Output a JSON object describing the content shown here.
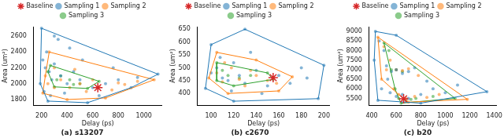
{
  "chart_data": [
    {
      "type": "scatter",
      "title": "(a) s13207",
      "x_label": "Delay (ps)",
      "y_label": "Area (um²)",
      "xlim": [
        140,
        1140
      ],
      "xticks": [
        200,
        400,
        600,
        800,
        1000
      ],
      "ylim": [
        1730,
        2720
      ],
      "yticks": [
        1800,
        2000,
        2200,
        2400,
        2600
      ],
      "grid": false,
      "legend": "top",
      "series": [
        {
          "name": "Sampling 1",
          "color": "#1f77b4",
          "marker": "circle",
          "hull": true,
          "x": [
            200,
            330,
            1110,
            900,
            560,
            250,
            190,
            210,
            230,
            240,
            260,
            280,
            300,
            350,
            400,
            450,
            500,
            600,
            700,
            800,
            220,
            270,
            380,
            650,
            520,
            420,
            300,
            760,
            950
          ],
          "values": [
            2700,
            2560,
            2120,
            1950,
            1760,
            1780,
            2000,
            2300,
            2200,
            2400,
            2150,
            2050,
            2250,
            2100,
            2000,
            2150,
            2050,
            1950,
            2000,
            2050,
            1900,
            1850,
            1880,
            1850,
            2300,
            2450,
            2600,
            2200,
            2080
          ]
        },
        {
          "name": "Sampling 2",
          "color": "#ff7f0e",
          "marker": "circle",
          "hull": true,
          "x": [
            260,
            1080,
            700,
            400,
            210,
            230,
            300,
            350,
            420,
            500,
            550,
            600,
            650,
            750,
            850,
            300,
            250,
            460,
            800,
            950
          ],
          "values": [
            2400,
            2050,
            1820,
            1800,
            1880,
            2100,
            2200,
            2050,
            1950,
            2000,
            1900,
            2050,
            1960,
            1920,
            1990,
            1950,
            2000,
            2180,
            2010,
            2030
          ]
        },
        {
          "name": "Sampling 3",
          "color": "#2ca02c",
          "marker": "circle",
          "hull": true,
          "x": [
            270,
            650,
            560,
            300,
            250,
            350,
            420,
            500,
            320,
            450
          ],
          "values": [
            2230,
            2030,
            1940,
            1960,
            2150,
            2100,
            2050,
            2000,
            2050,
            1990
          ]
        },
        {
          "name": "Baseline",
          "color": "#d62728",
          "marker": "star",
          "hull": false,
          "x": [
            640
          ],
          "values": [
            1950
          ]
        }
      ]
    },
    {
      "type": "scatter",
      "title": "(b) c2670",
      "x_label": "Delay (ps)",
      "y_label": "Area (um²)",
      "xlim": [
        88,
        205
      ],
      "xticks": [
        100,
        120,
        140,
        160,
        180,
        200
      ],
      "ylim": [
        355,
        660
      ],
      "yticks": [
        400,
        450,
        500,
        550,
        600,
        650
      ],
      "grid": false,
      "legend": "top",
      "series": [
        {
          "name": "Sampling 1",
          "color": "#1f77b4",
          "marker": "circle",
          "hull": true,
          "x": [
            100,
            130,
            200,
            195,
            120,
            95,
            100,
            105,
            110,
            115,
            120,
            125,
            130,
            140,
            150,
            160,
            170,
            180,
            108,
            118,
            135,
            145,
            185
          ],
          "values": [
            590,
            650,
            510,
            380,
            370,
            420,
            480,
            500,
            460,
            450,
            520,
            470,
            440,
            490,
            430,
            470,
            440,
            500,
            540,
            410,
            560,
            400,
            460
          ]
        },
        {
          "name": "Sampling 2",
          "color": "#ff7f0e",
          "marker": "circle",
          "hull": true,
          "x": [
            105,
            140,
            172,
            160,
            115,
            98,
            105,
            110,
            118,
            125,
            130,
            140,
            150,
            112,
            135,
            158
          ],
          "values": [
            560,
            530,
            465,
            410,
            400,
            460,
            480,
            445,
            500,
            455,
            430,
            470,
            450,
            520,
            490,
            440
          ]
        },
        {
          "name": "Sampling 3",
          "color": "#2ca02c",
          "marker": "circle",
          "hull": true,
          "x": [
            105,
            150,
            155,
            120,
            105,
            115,
            125,
            135,
            110
          ],
          "values": [
            520,
            480,
            455,
            430,
            450,
            470,
            460,
            470,
            490
          ]
        },
        {
          "name": "Baseline",
          "color": "#d62728",
          "marker": "star",
          "hull": false,
          "x": [
            155
          ],
          "values": [
            462
          ]
        }
      ]
    },
    {
      "type": "scatter",
      "title": "(c) b20",
      "x_label": "Delay (ps)",
      "y_label": "Area (um²)",
      "xlim": [
        380,
        1420
      ],
      "xticks": [
        400,
        600,
        800,
        1000,
        1200,
        1400
      ],
      "ylim": [
        5150,
        9250
      ],
      "yticks": [
        5500,
        6000,
        6500,
        7000,
        7500,
        8000,
        8500,
        9000
      ],
      "grid": false,
      "legend": "top",
      "series": [
        {
          "name": "Sampling 1",
          "color": "#1f77b4",
          "marker": "circle",
          "hull": true,
          "x": [
            430,
            600,
            1340,
            800,
            450,
            420,
            460,
            500,
            520,
            560,
            600,
            650,
            700,
            480,
            550,
            600,
            650,
            700,
            800,
            900,
            1000,
            1100,
            750,
            850,
            530
          ],
          "values": [
            9000,
            8800,
            5850,
            5250,
            5400,
            7500,
            8500,
            8000,
            7200,
            6900,
            7000,
            6800,
            6900,
            6000,
            5800,
            5600,
            5700,
            5500,
            5700,
            6000,
            5800,
            6200,
            7100,
            6400,
            6500
          ]
        },
        {
          "name": "Sampling 2",
          "color": "#ff7f0e",
          "marker": "circle",
          "hull": true,
          "x": [
            450,
            1180,
            700,
            480,
            500,
            550,
            600,
            650,
            700,
            580,
            620,
            680,
            750,
            850,
            950,
            520,
            780
          ],
          "values": [
            8700,
            5450,
            5300,
            6500,
            8200,
            7500,
            7000,
            6950,
            7050,
            6000,
            5700,
            5500,
            5600,
            5550,
            5700,
            7000,
            6700
          ]
        },
        {
          "name": "Sampling 3",
          "color": "#2ca02c",
          "marker": "circle",
          "hull": true,
          "x": [
            500,
            1080,
            640,
            560,
            540,
            600,
            650,
            620,
            680,
            720,
            760,
            900,
            590
          ],
          "values": [
            8400,
            5500,
            5250,
            7000,
            8000,
            7000,
            6900,
            5500,
            5400,
            5450,
            5500,
            5600,
            6000
          ]
        },
        {
          "name": "Baseline",
          "color": "#d62728",
          "marker": "star",
          "hull": false,
          "x": [
            660
          ],
          "values": [
            5480
          ]
        }
      ]
    }
  ]
}
